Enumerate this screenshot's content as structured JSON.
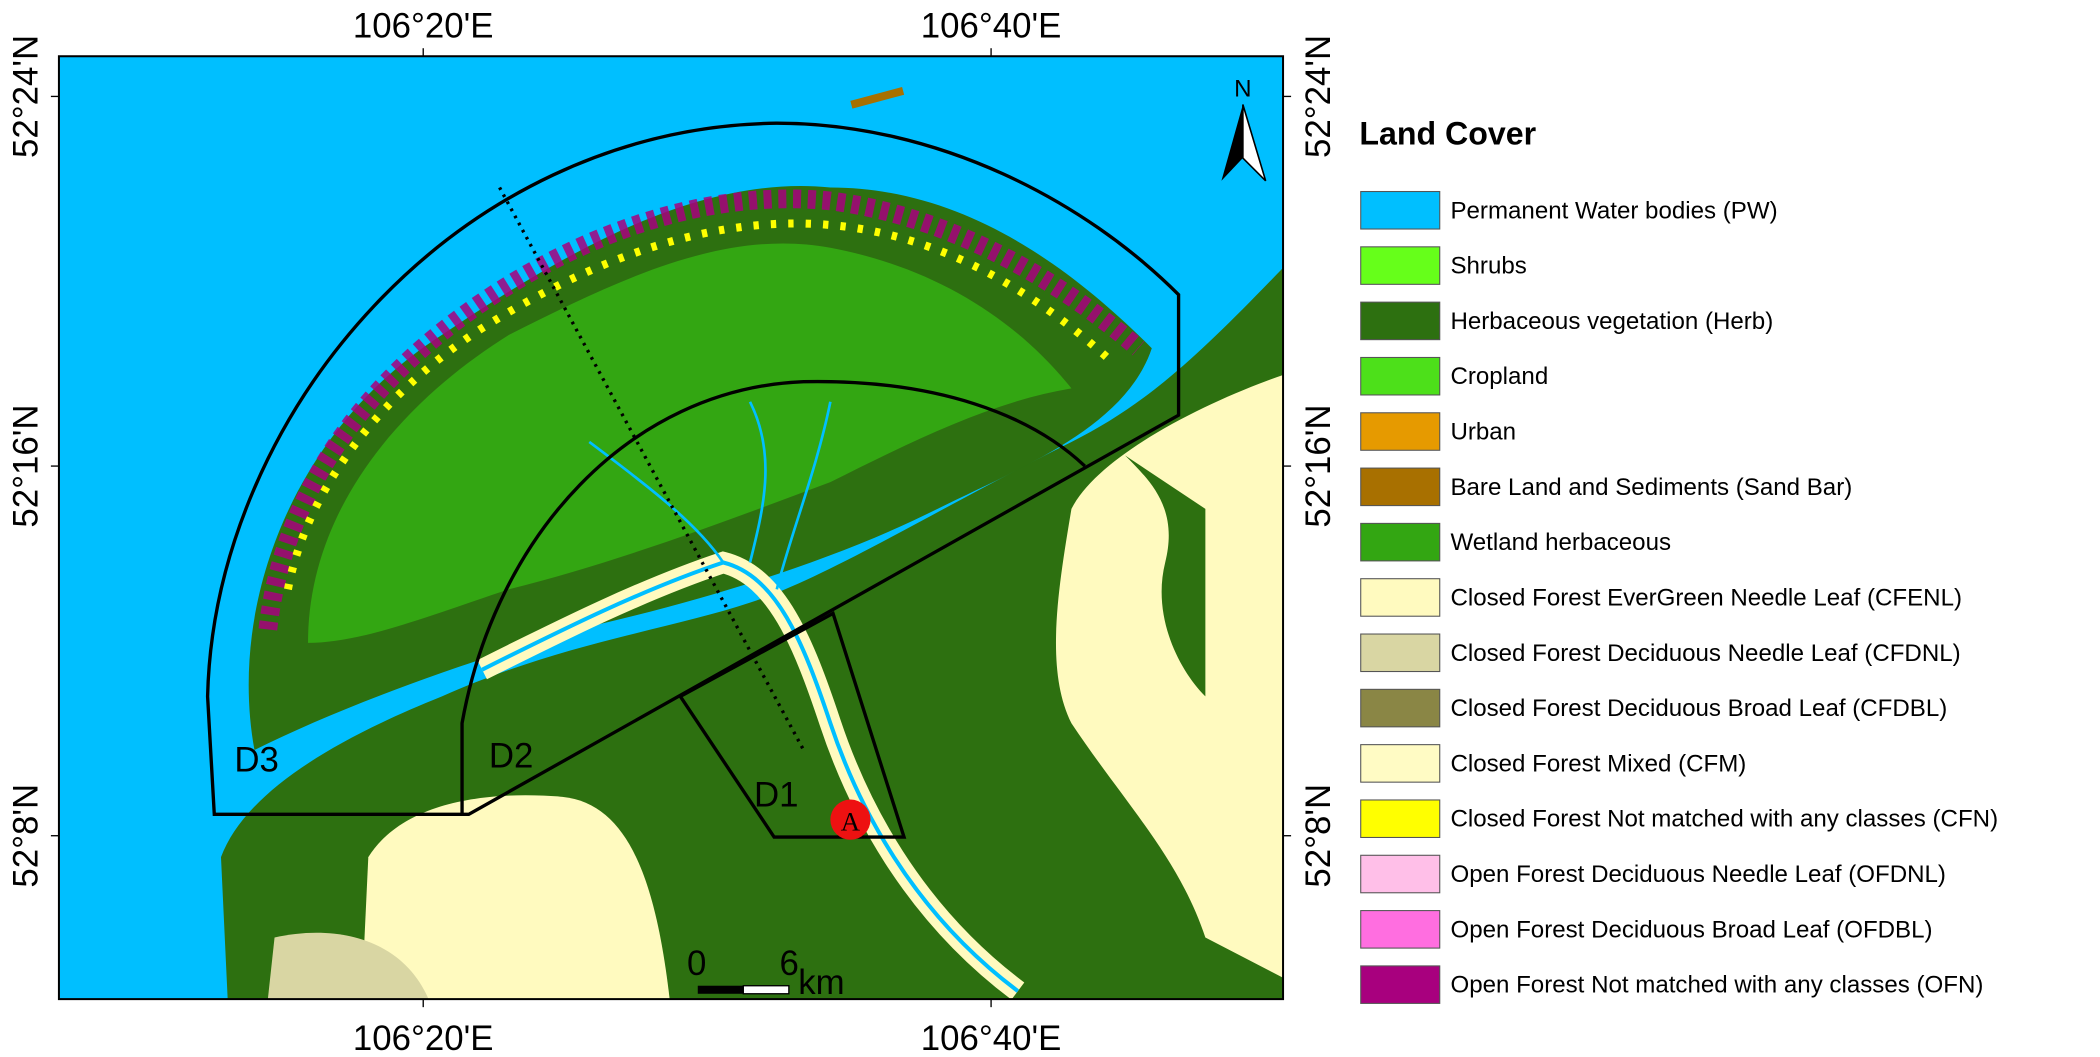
{
  "map": {
    "lon_labels": [
      "106°20'E",
      "106°40'E"
    ],
    "lat_labels": [
      "52°24'N",
      "52°16'N",
      "52°8'N"
    ],
    "zones": [
      "D3",
      "D2",
      "D1"
    ],
    "marker": "A",
    "north": "N",
    "scale_bar": {
      "start": "0",
      "end": "6",
      "unit": "km"
    }
  },
  "legend": {
    "title": "Land Cover",
    "items": [
      {
        "label": "Permanent Water bodies (PW)",
        "color": "#00bfff"
      },
      {
        "label": "Shrubs",
        "color": "#66ff1a"
      },
      {
        "label": "Herbaceous vegetation (Herb)",
        "color": "#2d7010"
      },
      {
        "label": "Cropland",
        "color": "#4de01a"
      },
      {
        "label": "Urban",
        "color": "#e69a00"
      },
      {
        "label": "Bare Land and Sediments (Sand Bar)",
        "color": "#a87000"
      },
      {
        "label": "Wetland herbaceous",
        "color": "#33a612"
      },
      {
        "label": "Closed Forest EverGreen Needle Leaf (CFENL)",
        "color": "#fffabf"
      },
      {
        "label": "Closed Forest Deciduous Needle Leaf (CFDNL)",
        "color": "#d9d6a3"
      },
      {
        "label": "Closed Forest Deciduous Broad Leaf (CFDBL)",
        "color": "#8a8645"
      },
      {
        "label": "Closed Forest Mixed (CFM)",
        "color": "#fffbc4"
      },
      {
        "label": "Closed Forest Not matched with any classes (CFN)",
        "color": "#ffff00"
      },
      {
        "label": "Open Forest Deciduous Needle Leaf (OFDNL)",
        "color": "#ffbfe8"
      },
      {
        "label": "Open Forest Deciduous Broad Leaf (OFDBL)",
        "color": "#ff6ee0"
      },
      {
        "label": "Open Forest Not matched with any classes (OFN)",
        "color": "#a8007e"
      }
    ]
  }
}
